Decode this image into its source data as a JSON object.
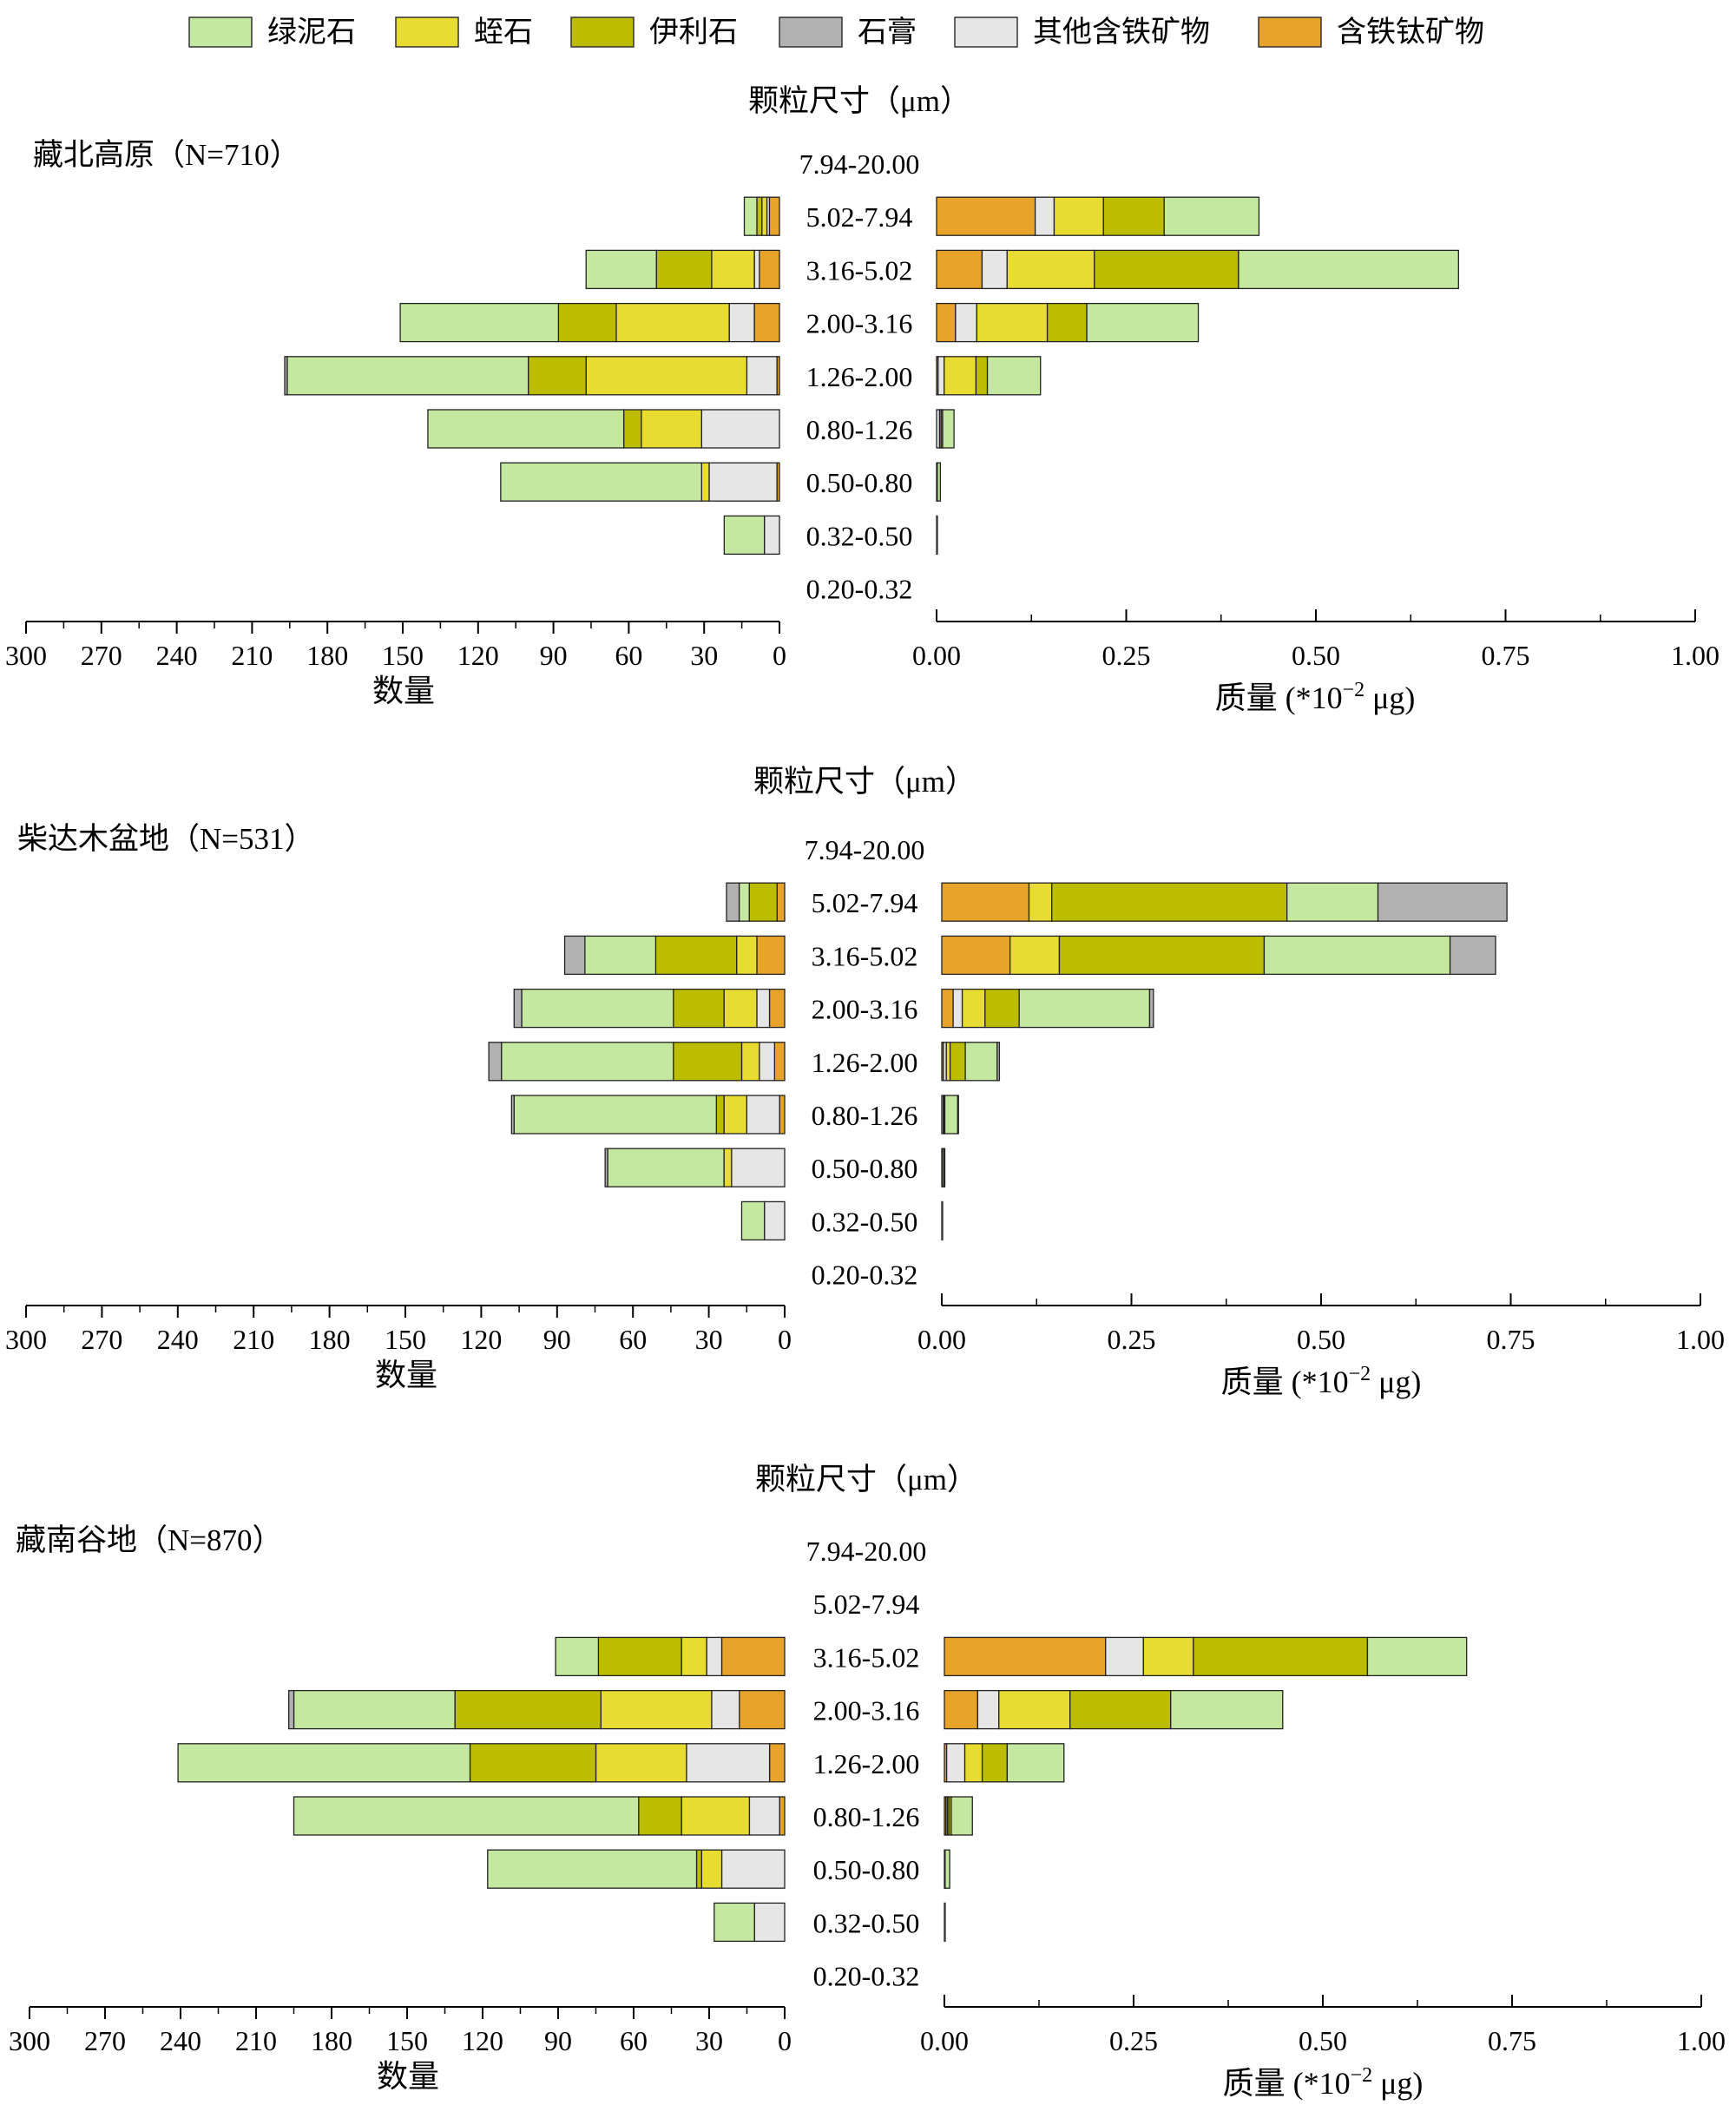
{
  "legend": {
    "chlorite": {
      "label": "绿泥石",
      "color": "#c5e8a0"
    },
    "vermiculite": {
      "label": "蛭石",
      "color": "#e8dc32"
    },
    "illite": {
      "label": "伊利石",
      "color": "#bcbc00"
    },
    "gypsum": {
      "label": "石膏",
      "color": "#b2b2b2"
    },
    "other_fe": {
      "label": "其他含铁矿物",
      "color": "#e6e6e6"
    },
    "fe_ti": {
      "label": "含铁钛矿物",
      "color": "#e8a32a"
    }
  },
  "chart_data": [
    {
      "type": "bar",
      "title": "藏北高原（N=710）",
      "size_header": "颗粒尺寸（μm）",
      "categories": [
        "7.94-20.00",
        "5.02-7.94",
        "3.16-5.02",
        "2.00-3.16",
        "1.26-2.00",
        "0.80-1.26",
        "0.50-0.80",
        "0.32-0.50",
        "0.20-0.32"
      ],
      "count_axis": {
        "label": "数量",
        "range": [
          0,
          300
        ],
        "ticks": [
          "300",
          "270",
          "240",
          "210",
          "180",
          "150",
          "120",
          "90",
          "60",
          "30",
          "0"
        ]
      },
      "mass_axis": {
        "label": "质量 (*10",
        "label_sup": "−2",
        "label_unit": " μg)",
        "range": [
          0,
          1.0
        ],
        "ticks": [
          "0.00",
          "0.25",
          "0.50",
          "0.75",
          "1.00"
        ]
      },
      "count_series": {
        "fe_ti": [
          0,
          4,
          8,
          10,
          1,
          0,
          1,
          0,
          0
        ],
        "other_fe": [
          0,
          1,
          2,
          10,
          12,
          31,
          27,
          6,
          0
        ],
        "vermiculite": [
          0,
          2,
          17,
          45,
          64,
          24,
          3,
          0,
          0
        ],
        "illite": [
          0,
          2,
          22,
          23,
          23,
          7,
          0,
          0,
          0
        ],
        "chlorite": [
          0,
          5,
          28,
          63,
          96,
          78,
          80,
          16,
          0
        ],
        "gypsum": [
          0,
          0,
          0,
          0,
          1,
          0,
          0,
          0,
          0
        ]
      },
      "mass_series": {
        "fe_ti": [
          0,
          0.13,
          0.06,
          0.025,
          0.002,
          0,
          0,
          0,
          0
        ],
        "other_fe": [
          0,
          0.025,
          0.033,
          0.028,
          0.008,
          0.004,
          0.001,
          0,
          0
        ],
        "vermiculite": [
          0,
          0.065,
          0.115,
          0.093,
          0.042,
          0.002,
          0,
          0,
          0
        ],
        "illite": [
          0,
          0.08,
          0.19,
          0.052,
          0.015,
          0.002,
          0,
          0,
          0
        ],
        "chlorite": [
          0,
          0.125,
          0.29,
          0.147,
          0.07,
          0.015,
          0.004,
          0.001,
          0
        ],
        "gypsum": [
          0,
          0,
          0,
          0,
          0,
          0,
          0,
          0,
          0
        ]
      }
    },
    {
      "type": "bar",
      "title": "柴达木盆地（N=531）",
      "size_header": "颗粒尺寸（μm）",
      "categories": [
        "7.94-20.00",
        "5.02-7.94",
        "3.16-5.02",
        "2.00-3.16",
        "1.26-2.00",
        "0.80-1.26",
        "0.50-0.80",
        "0.32-0.50",
        "0.20-0.32"
      ],
      "count_axis": {
        "label": "数量",
        "range": [
          0,
          300
        ],
        "ticks": [
          "300",
          "270",
          "240",
          "210",
          "180",
          "150",
          "120",
          "90",
          "60",
          "30",
          "0"
        ]
      },
      "mass_axis": {
        "label": "质量 (*10",
        "label_sup": "−2",
        "label_unit": " μg)",
        "range": [
          0,
          1.0
        ],
        "ticks": [
          "0.00",
          "0.25",
          "0.50",
          "0.75",
          "1.00"
        ]
      },
      "count_series": {
        "fe_ti": [
          0,
          3,
          11,
          6,
          4,
          2,
          0,
          0,
          0
        ],
        "other_fe": [
          0,
          0,
          0,
          5,
          6,
          13,
          21,
          8,
          0
        ],
        "vermiculite": [
          0,
          0,
          8,
          13,
          7,
          9,
          3,
          0,
          0
        ],
        "illite": [
          0,
          11,
          32,
          20,
          27,
          3,
          0,
          0,
          0
        ],
        "chlorite": [
          0,
          4,
          28,
          60,
          68,
          80,
          46,
          9,
          0
        ],
        "gypsum": [
          0,
          5,
          8,
          3,
          5,
          1,
          1,
          0,
          0
        ]
      },
      "mass_series": {
        "fe_ti": [
          0,
          0.115,
          0.09,
          0.015,
          0.002,
          0,
          0,
          0,
          0
        ],
        "other_fe": [
          0,
          0,
          0,
          0.012,
          0.004,
          0.002,
          0.001,
          0,
          0
        ],
        "vermiculite": [
          0,
          0.03,
          0.065,
          0.03,
          0.005,
          0.001,
          0,
          0,
          0
        ],
        "illite": [
          0,
          0.31,
          0.27,
          0.045,
          0.02,
          0.001,
          0,
          0,
          0
        ],
        "chlorite": [
          0,
          0.12,
          0.245,
          0.172,
          0.042,
          0.017,
          0.002,
          0.001,
          0
        ],
        "gypsum": [
          0,
          0.17,
          0.06,
          0.005,
          0.003,
          0.001,
          0.001,
          0,
          0
        ]
      }
    },
    {
      "type": "bar",
      "title": "藏南谷地（N=870）",
      "size_header": "颗粒尺寸（μm）",
      "categories": [
        "7.94-20.00",
        "5.02-7.94",
        "3.16-5.02",
        "2.00-3.16",
        "1.26-2.00",
        "0.80-1.26",
        "0.50-0.80",
        "0.32-0.50",
        "0.20-0.32"
      ],
      "count_axis": {
        "label": "数量",
        "range": [
          0,
          300
        ],
        "ticks": [
          "300",
          "270",
          "240",
          "210",
          "180",
          "150",
          "120",
          "90",
          "60",
          "30",
          "0"
        ]
      },
      "mass_axis": {
        "label": "质量 (*10",
        "label_sup": "−2",
        "label_unit": " μg)",
        "range": [
          0,
          1.0
        ],
        "ticks": [
          "0.00",
          "0.25",
          "0.50",
          "0.75",
          "1.00"
        ]
      },
      "count_series": {
        "fe_ti": [
          0,
          0,
          25,
          18,
          6,
          2,
          0,
          0,
          0
        ],
        "other_fe": [
          0,
          0,
          6,
          11,
          33,
          12,
          25,
          12,
          0
        ],
        "vermiculite": [
          0,
          0,
          10,
          44,
          36,
          27,
          8,
          0,
          0
        ],
        "illite": [
          0,
          0,
          33,
          58,
          50,
          17,
          2,
          0,
          0
        ],
        "chlorite": [
          0,
          0,
          17,
          64,
          116,
          137,
          83,
          16,
          0
        ],
        "gypsum": [
          0,
          0,
          0,
          2,
          0,
          0,
          0,
          0,
          0
        ]
      },
      "mass_series": {
        "fe_ti": [
          0,
          0,
          0.213,
          0.044,
          0.003,
          0.002,
          0,
          0,
          0
        ],
        "other_fe": [
          0,
          0,
          0.05,
          0.028,
          0.024,
          0.002,
          0.001,
          0,
          0
        ],
        "vermiculite": [
          0,
          0,
          0.066,
          0.094,
          0.023,
          0.002,
          0,
          0,
          0
        ],
        "illite": [
          0,
          0,
          0.23,
          0.133,
          0.033,
          0.003,
          0,
          0,
          0
        ],
        "chlorite": [
          0,
          0,
          0.131,
          0.148,
          0.075,
          0.028,
          0.006,
          0.001,
          0
        ],
        "gypsum": [
          0,
          0,
          0,
          0,
          0,
          0,
          0,
          0,
          0
        ]
      }
    }
  ]
}
